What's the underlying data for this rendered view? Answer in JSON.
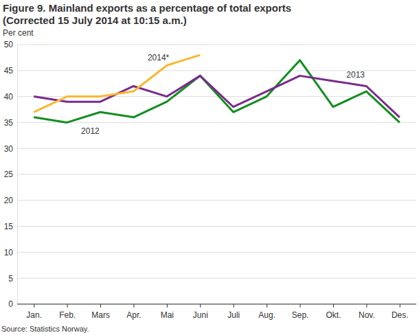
{
  "chart_data": {
    "type": "line",
    "title": "Figure 9. Mainland exports as a percentage of total exports",
    "subtitle": "(Corrected 15 July 2014 at 10:15 a.m.)",
    "y_label": "Per cent",
    "source": "Source: Statistics Norway.",
    "categories": [
      "Jan.",
      "Feb.",
      "Mars",
      "Apr.",
      "Mai",
      "Juni",
      "Juli",
      "Aug.",
      "Sep.",
      "Okt.",
      "Nov.",
      "Des."
    ],
    "series": [
      {
        "name": "2014*",
        "color": "#f9b832",
        "values": [
          37,
          40,
          40,
          41,
          46,
          48,
          null,
          null,
          null,
          null,
          null,
          null
        ]
      },
      {
        "name": "2013",
        "color": "#7a2a8c",
        "values": [
          40,
          39,
          39,
          42,
          40,
          44,
          38,
          41,
          44,
          43,
          42,
          36
        ]
      },
      {
        "name": "2012",
        "color": "#138d1f",
        "values": [
          36,
          35,
          37,
          36,
          39,
          44,
          37,
          40,
          47,
          38,
          41,
          35
        ]
      }
    ],
    "ylim": [
      0,
      50
    ],
    "yticks": [
      0,
      5,
      10,
      15,
      20,
      25,
      30,
      35,
      40,
      45,
      50
    ],
    "grid": true
  }
}
